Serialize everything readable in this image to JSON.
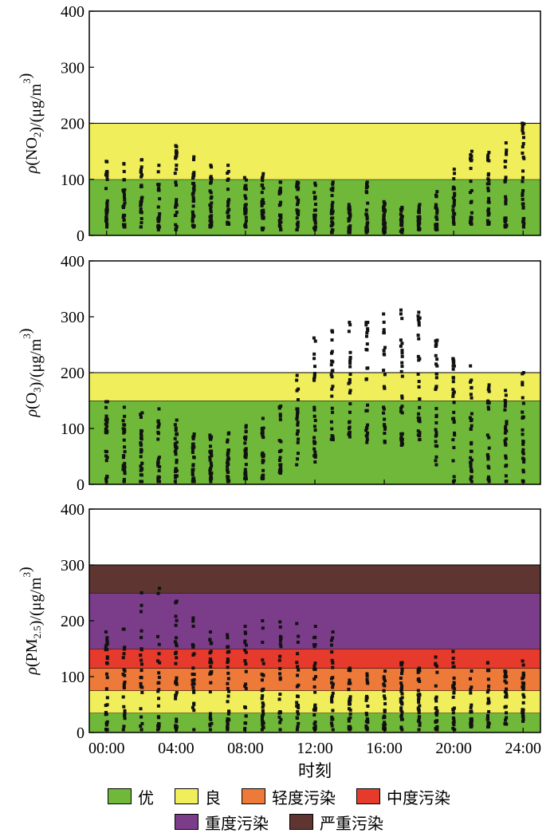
{
  "x_axis": {
    "label": "时刻",
    "ticks": [
      "00:00",
      "04:00",
      "08:00",
      "12:00",
      "16:00",
      "20:00",
      "24:00"
    ],
    "tick_values": [
      0,
      4,
      8,
      12,
      16,
      20,
      24
    ],
    "range": [
      -1,
      25
    ]
  },
  "legend": {
    "items": [
      {
        "key": "good1",
        "label": "优",
        "color": "#70b83a"
      },
      {
        "key": "good2",
        "label": "良",
        "color": "#f1ee5c"
      },
      {
        "key": "light",
        "label": "轻度污染",
        "color": "#ee7a3a"
      },
      {
        "key": "moderate",
        "label": "中度污染",
        "color": "#e63a2c"
      },
      {
        "key": "heavy",
        "label": "重度污染",
        "color": "#7b3d8a"
      },
      {
        "key": "severe",
        "label": "严重污染",
        "color": "#5e3531"
      }
    ]
  },
  "chart_data": [
    {
      "type": "scatter",
      "ylabel_main": "ρ(NO",
      "ylabel_sub": "2",
      "ylabel_tail": ")/(μg/m",
      "ylabel_sup": "3",
      "ylabel_end": ")",
      "ylim": [
        0,
        400
      ],
      "yticks": [
        0,
        100,
        200,
        300,
        400
      ],
      "bands": [
        {
          "key": "good1",
          "from": 0,
          "to": 100
        },
        {
          "key": "good2",
          "from": 100,
          "to": 200
        }
      ],
      "ranges": [
        {
          "x": 0,
          "min": 15,
          "max": 132
        },
        {
          "x": 1,
          "min": 15,
          "max": 128
        },
        {
          "x": 2,
          "min": 15,
          "max": 135
        },
        {
          "x": 3,
          "min": 10,
          "max": 125
        },
        {
          "x": 4,
          "min": 10,
          "max": 160
        },
        {
          "x": 5,
          "min": 15,
          "max": 140
        },
        {
          "x": 6,
          "min": 15,
          "max": 125
        },
        {
          "x": 7,
          "min": 20,
          "max": 125
        },
        {
          "x": 8,
          "min": 15,
          "max": 103
        },
        {
          "x": 9,
          "min": 10,
          "max": 110
        },
        {
          "x": 10,
          "min": 10,
          "max": 95
        },
        {
          "x": 11,
          "min": 10,
          "max": 95
        },
        {
          "x": 12,
          "min": 10,
          "max": 93
        },
        {
          "x": 13,
          "min": 5,
          "max": 95
        },
        {
          "x": 14,
          "min": 5,
          "max": 55
        },
        {
          "x": 15,
          "min": 5,
          "max": 95
        },
        {
          "x": 16,
          "min": 5,
          "max": 60
        },
        {
          "x": 17,
          "min": 5,
          "max": 50
        },
        {
          "x": 18,
          "min": 10,
          "max": 55
        },
        {
          "x": 19,
          "min": 10,
          "max": 78
        },
        {
          "x": 20,
          "min": 20,
          "max": 118
        },
        {
          "x": 21,
          "min": 20,
          "max": 150
        },
        {
          "x": 22,
          "min": 20,
          "max": 148
        },
        {
          "x": 23,
          "min": 15,
          "max": 165
        },
        {
          "x": 24,
          "min": 15,
          "max": 200
        }
      ]
    },
    {
      "type": "scatter",
      "ylabel_main": "ρ(O",
      "ylabel_sub": "3",
      "ylabel_tail": ")/(μg/m",
      "ylabel_sup": "3",
      "ylabel_end": ")",
      "ylim": [
        0,
        400
      ],
      "yticks": [
        0,
        100,
        200,
        300,
        400
      ],
      "bands": [
        {
          "key": "good1",
          "from": 0,
          "to": 150
        },
        {
          "key": "good2",
          "from": 150,
          "to": 200
        }
      ],
      "ranges": [
        {
          "x": 0,
          "min": 5,
          "max": 148
        },
        {
          "x": 1,
          "min": 5,
          "max": 138
        },
        {
          "x": 2,
          "min": 5,
          "max": 128
        },
        {
          "x": 3,
          "min": 5,
          "max": 135
        },
        {
          "x": 4,
          "min": 5,
          "max": 115
        },
        {
          "x": 5,
          "min": 5,
          "max": 90
        },
        {
          "x": 6,
          "min": 5,
          "max": 88
        },
        {
          "x": 7,
          "min": 5,
          "max": 92
        },
        {
          "x": 8,
          "min": 10,
          "max": 105
        },
        {
          "x": 9,
          "min": 10,
          "max": 118
        },
        {
          "x": 10,
          "min": 20,
          "max": 140
        },
        {
          "x": 11,
          "min": 35,
          "max": 195
        },
        {
          "x": 12,
          "min": 40,
          "max": 262
        },
        {
          "x": 13,
          "min": 80,
          "max": 275
        },
        {
          "x": 14,
          "min": 85,
          "max": 290
        },
        {
          "x": 15,
          "min": 75,
          "max": 290
        },
        {
          "x": 16,
          "min": 75,
          "max": 305
        },
        {
          "x": 17,
          "min": 70,
          "max": 312
        },
        {
          "x": 18,
          "min": 80,
          "max": 308
        },
        {
          "x": 19,
          "min": 35,
          "max": 258
        },
        {
          "x": 20,
          "min": 5,
          "max": 225
        },
        {
          "x": 21,
          "min": 5,
          "max": 212
        },
        {
          "x": 22,
          "min": 5,
          "max": 178
        },
        {
          "x": 23,
          "min": 5,
          "max": 168
        },
        {
          "x": 24,
          "min": 5,
          "max": 200
        }
      ]
    },
    {
      "type": "scatter",
      "ylabel_main": "ρ(PM",
      "ylabel_sub": "2.5",
      "ylabel_tail": ")/(μg/m",
      "ylabel_sup": "3",
      "ylabel_end": ")",
      "ylim": [
        0,
        400
      ],
      "yticks": [
        0,
        100,
        200,
        300,
        400
      ],
      "bands": [
        {
          "key": "good1",
          "from": 0,
          "to": 35
        },
        {
          "key": "good2",
          "from": 35,
          "to": 75
        },
        {
          "key": "light",
          "from": 75,
          "to": 115
        },
        {
          "key": "moderate",
          "from": 115,
          "to": 150
        },
        {
          "key": "heavy",
          "from": 150,
          "to": 250
        },
        {
          "key": "severe",
          "from": 250,
          "to": 300
        }
      ],
      "ranges": [
        {
          "x": 0,
          "min": 5,
          "max": 180
        },
        {
          "x": 1,
          "min": 5,
          "max": 185
        },
        {
          "x": 2,
          "min": 5,
          "max": 250
        },
        {
          "x": 3,
          "min": 5,
          "max": 258
        },
        {
          "x": 4,
          "min": 5,
          "max": 235
        },
        {
          "x": 5,
          "min": 5,
          "max": 205
        },
        {
          "x": 6,
          "min": 5,
          "max": 180
        },
        {
          "x": 7,
          "min": 5,
          "max": 175
        },
        {
          "x": 8,
          "min": 5,
          "max": 190
        },
        {
          "x": 9,
          "min": 5,
          "max": 200
        },
        {
          "x": 10,
          "min": 5,
          "max": 198
        },
        {
          "x": 11,
          "min": 5,
          "max": 195
        },
        {
          "x": 12,
          "min": 5,
          "max": 190
        },
        {
          "x": 13,
          "min": 5,
          "max": 180
        },
        {
          "x": 14,
          "min": 5,
          "max": 115
        },
        {
          "x": 15,
          "min": 5,
          "max": 105
        },
        {
          "x": 16,
          "min": 5,
          "max": 110
        },
        {
          "x": 17,
          "min": 5,
          "max": 125
        },
        {
          "x": 18,
          "min": 5,
          "max": 115
        },
        {
          "x": 19,
          "min": 5,
          "max": 135
        },
        {
          "x": 20,
          "min": 5,
          "max": 145
        },
        {
          "x": 21,
          "min": 10,
          "max": 110
        },
        {
          "x": 22,
          "min": 10,
          "max": 125
        },
        {
          "x": 23,
          "min": 15,
          "max": 110
        },
        {
          "x": 24,
          "min": 20,
          "max": 128
        }
      ]
    }
  ]
}
